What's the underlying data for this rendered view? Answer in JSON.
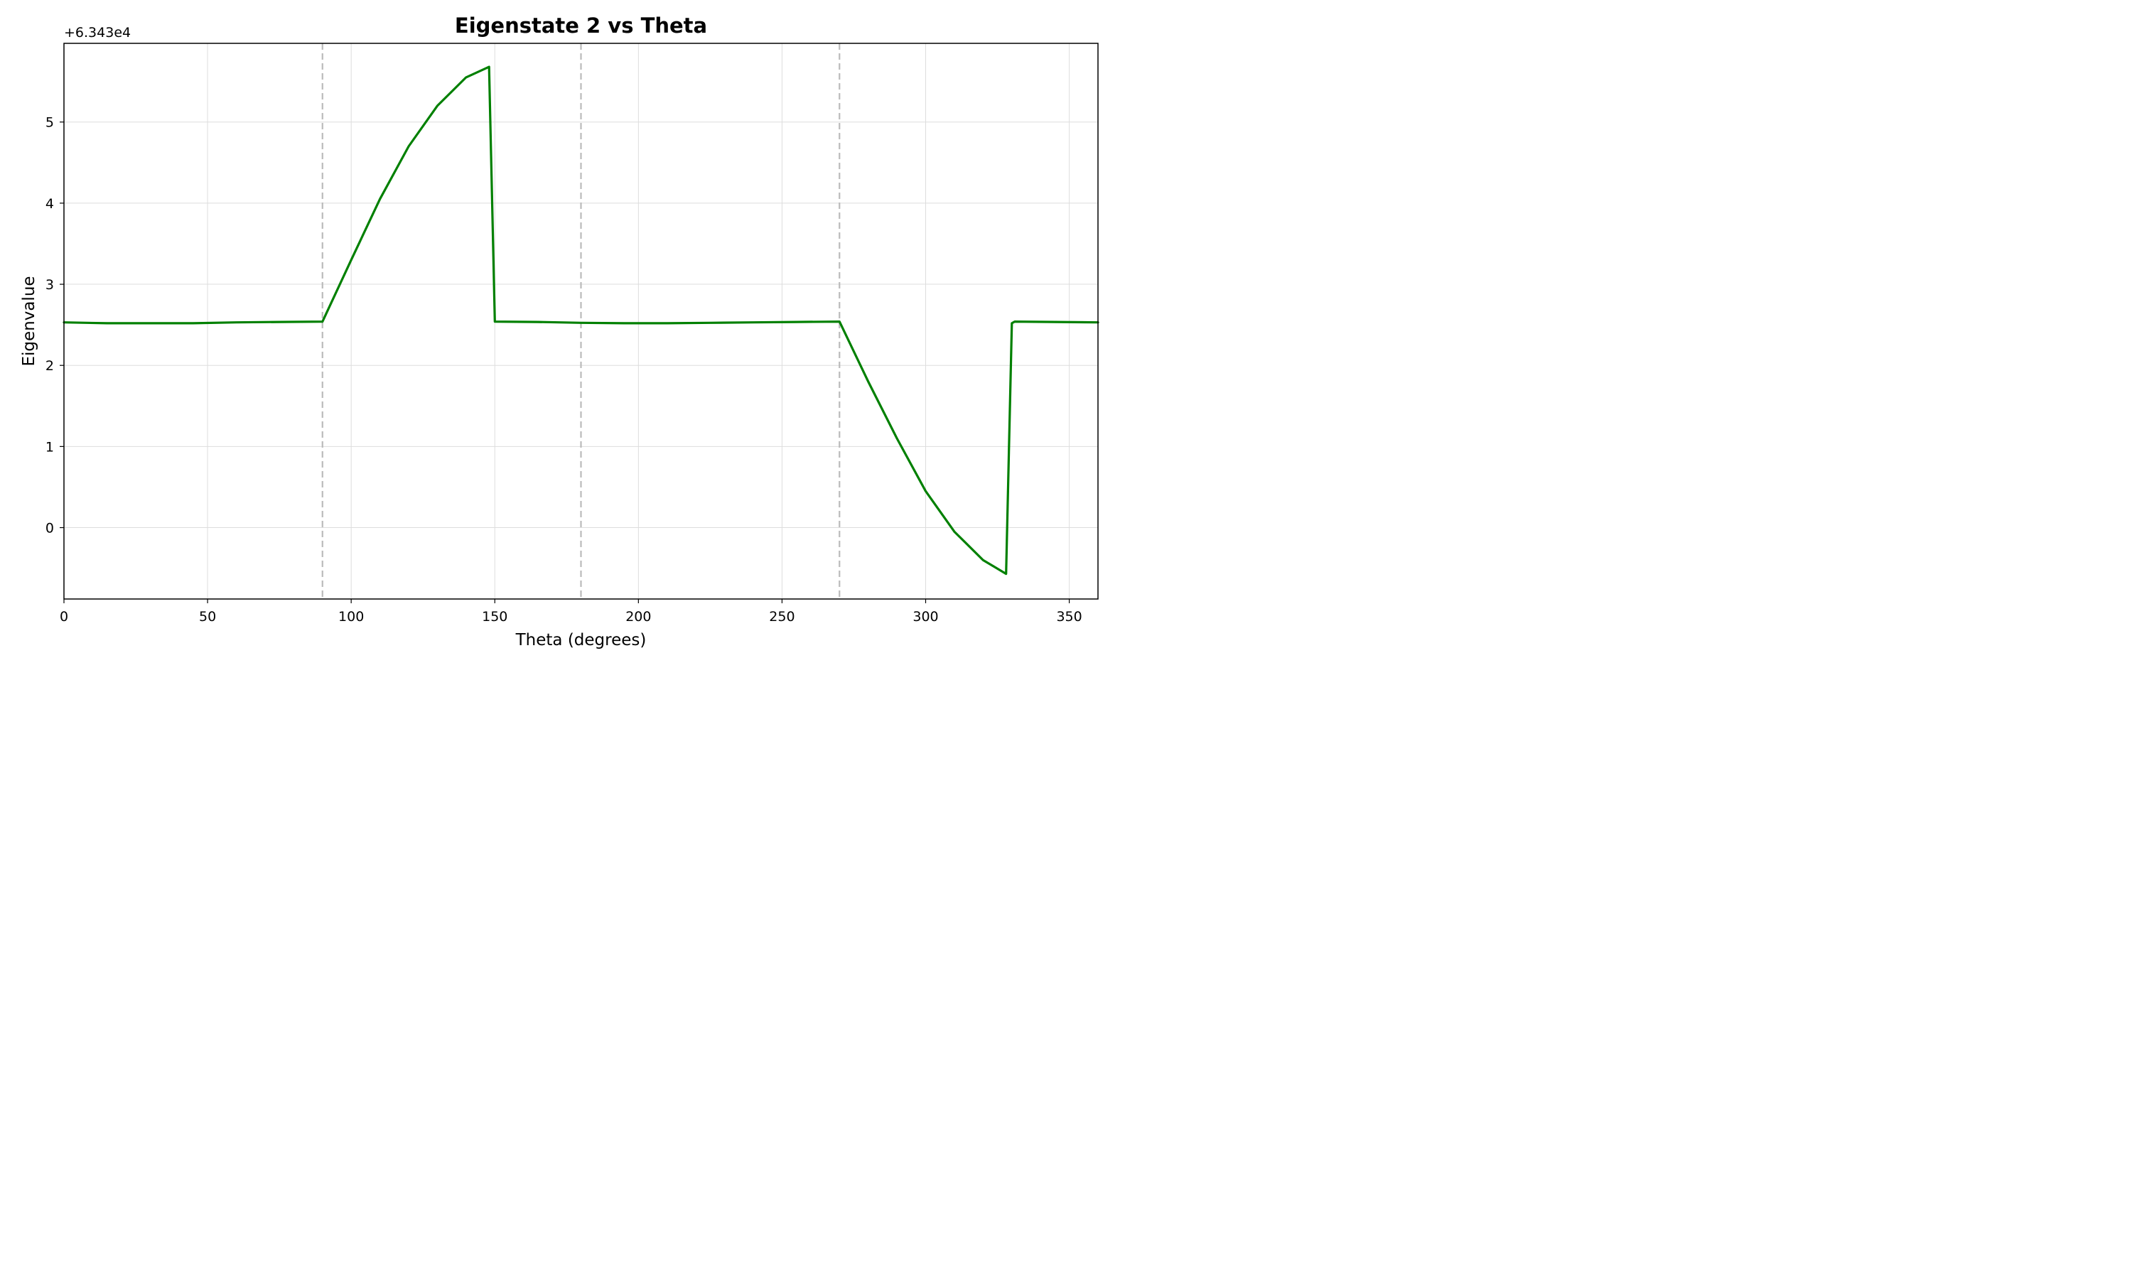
{
  "chart_data": {
    "type": "line",
    "title": "Eigenstate 2 vs Theta",
    "xlabel": "Theta (degrees)",
    "ylabel": "Eigenvalue",
    "y_offset_label": "+6.343e4",
    "xlim": [
      0,
      360
    ],
    "ylim": [
      -0.88,
      5.97
    ],
    "xticks": [
      0,
      50,
      100,
      150,
      200,
      250,
      300,
      350
    ],
    "yticks": [
      0,
      1,
      2,
      3,
      4,
      5
    ],
    "grid": true,
    "line_color": "#008000",
    "vline_color": "#bbbbbb",
    "vlines": [
      90,
      180,
      270
    ],
    "series": [
      {
        "name": "",
        "x": [
          0,
          15,
          30,
          45,
          60,
          75,
          90,
          100,
          110,
          120,
          130,
          140,
          148,
          150,
          165,
          180,
          195,
          210,
          225,
          240,
          255,
          270,
          280,
          290,
          300,
          310,
          320,
          328,
          330,
          331,
          345,
          360
        ],
        "y": [
          2.53,
          2.52,
          2.52,
          2.52,
          2.53,
          2.535,
          2.54,
          3.3,
          4.05,
          4.7,
          5.2,
          5.55,
          5.68,
          2.54,
          2.535,
          2.525,
          2.52,
          2.52,
          2.525,
          2.53,
          2.535,
          2.54,
          1.8,
          1.1,
          0.45,
          -0.05,
          -0.4,
          -0.57,
          2.52,
          2.54,
          2.535,
          2.53
        ]
      }
    ]
  }
}
